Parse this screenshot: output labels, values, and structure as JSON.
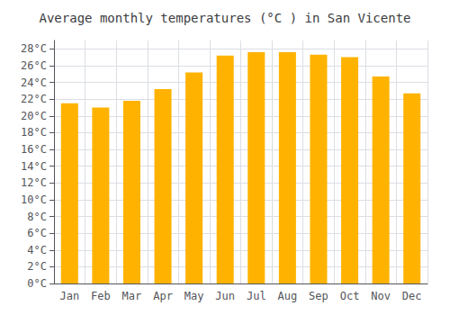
{
  "chart_data": {
    "type": "bar",
    "title": "Average monthly temperatures (°C ) in San Vicente",
    "categories": [
      "Jan",
      "Feb",
      "Mar",
      "Apr",
      "May",
      "Jun",
      "Jul",
      "Aug",
      "Sep",
      "Oct",
      "Nov",
      "Dec"
    ],
    "values": [
      21.5,
      21.0,
      21.8,
      23.2,
      25.2,
      27.2,
      27.6,
      27.6,
      27.3,
      27.0,
      24.7,
      22.7
    ],
    "color": "#FFB300",
    "ylim": [
      0,
      29
    ],
    "yticks": [
      {
        "value": 0,
        "label": "0°C"
      },
      {
        "value": 2,
        "label": "2°C"
      },
      {
        "value": 4,
        "label": "4°C"
      },
      {
        "value": 6,
        "label": "6°C"
      },
      {
        "value": 8,
        "label": "8°C"
      },
      {
        "value": 10,
        "label": "10°C"
      },
      {
        "value": 12,
        "label": "12°C"
      },
      {
        "value": 14,
        "label": "14°C"
      },
      {
        "value": 16,
        "label": "16°C"
      },
      {
        "value": 18,
        "label": "18°C"
      },
      {
        "value": 20,
        "label": "20°C"
      },
      {
        "value": 22,
        "label": "22°C"
      },
      {
        "value": 24,
        "label": "24°C"
      },
      {
        "value": 26,
        "label": "26°C"
      },
      {
        "value": 28,
        "label": "28°C"
      }
    ],
    "grid": true
  }
}
